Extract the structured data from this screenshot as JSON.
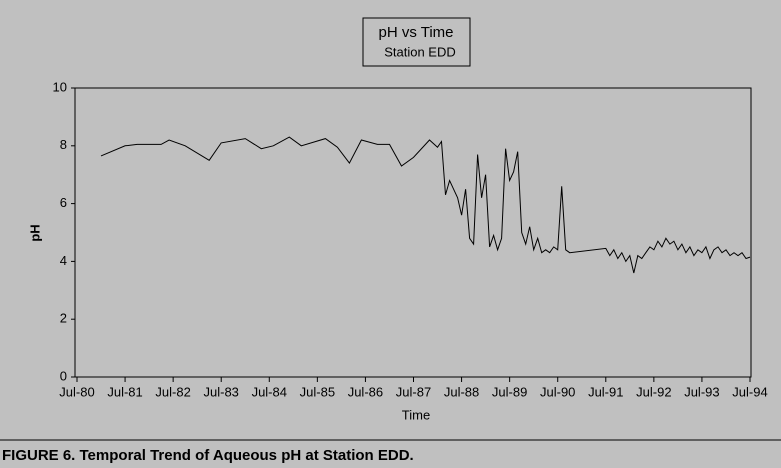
{
  "chart_data": {
    "type": "line",
    "title": "pH vs Time",
    "subtitle": "Station EDD",
    "x_label": "Time",
    "y_label": "pH",
    "caption": "FIGURE 6.  Temporal Trend of Aqueous pH at Station EDD.",
    "xlim": [
      "1980-07",
      "1994-07"
    ],
    "xticks": [
      {
        "value": "1980-07",
        "label": "Jul-80"
      },
      {
        "value": "1981-07",
        "label": "Jul-81"
      },
      {
        "value": "1982-07",
        "label": "Jul-82"
      },
      {
        "value": "1983-07",
        "label": "Jul-83"
      },
      {
        "value": "1984-07",
        "label": "Jul-84"
      },
      {
        "value": "1985-07",
        "label": "Jul-85"
      },
      {
        "value": "1986-07",
        "label": "Jul-86"
      },
      {
        "value": "1987-07",
        "label": "Jul-87"
      },
      {
        "value": "1988-07",
        "label": "Jul-88"
      },
      {
        "value": "1989-07",
        "label": "Jul-89"
      },
      {
        "value": "1990-07",
        "label": "Jul-90"
      },
      {
        "value": "1991-07",
        "label": "Jul-91"
      },
      {
        "value": "1992-07",
        "label": "Jul-92"
      },
      {
        "value": "1993-07",
        "label": "Jul-93"
      },
      {
        "value": "1994-07",
        "label": "Jul-94"
      }
    ],
    "ylim": [
      0,
      10
    ],
    "yticks": [
      0,
      2,
      4,
      6,
      8,
      10
    ],
    "x": [
      "1981-01",
      "1981-07",
      "1981-10",
      "1982-04",
      "1982-06",
      "1982-10",
      "1983-04",
      "1983-07",
      "1984-01",
      "1984-05",
      "1984-08",
      "1984-12",
      "1985-03",
      "1985-09",
      "1985-12",
      "1986-03",
      "1986-06",
      "1986-10",
      "1987-01",
      "1987-04",
      "1987-07",
      "1987-11",
      "1988-01",
      "1988-02",
      "1988-03",
      "1988-04",
      "1988-05",
      "1988-06",
      "1988-07",
      "1988-08",
      "1988-09",
      "1988-10",
      "1988-11",
      "1988-12",
      "1989-01",
      "1989-02",
      "1989-03",
      "1989-04",
      "1989-05",
      "1989-06",
      "1989-07",
      "1989-08",
      "1989-09",
      "1989-10",
      "1989-11",
      "1989-12",
      "1990-01",
      "1990-02",
      "1990-03",
      "1990-04",
      "1990-05",
      "1990-06",
      "1990-07",
      "1990-08",
      "1990-09",
      "1990-10",
      "1991-07",
      "1991-08",
      "1991-09",
      "1991-10",
      "1991-11",
      "1991-12",
      "1992-01",
      "1992-02",
      "1992-03",
      "1992-04",
      "1992-05",
      "1992-06",
      "1992-07",
      "1992-08",
      "1992-09",
      "1992-10",
      "1992-11",
      "1992-12",
      "1993-01",
      "1993-02",
      "1993-03",
      "1993-04",
      "1993-05",
      "1993-06",
      "1993-07",
      "1993-08",
      "1993-09",
      "1993-10",
      "1993-11",
      "1993-12",
      "1994-01",
      "1994-02",
      "1994-03",
      "1994-04",
      "1994-05",
      "1994-06",
      "1994-07"
    ],
    "series": [
      {
        "name": "pH",
        "color": "#000000",
        "values": [
          7.65,
          8.0,
          8.05,
          8.05,
          8.2,
          8.0,
          7.5,
          8.1,
          8.25,
          7.9,
          8.0,
          8.3,
          8.0,
          8.25,
          7.95,
          7.4,
          8.2,
          8.05,
          8.05,
          7.3,
          7.6,
          8.2,
          7.95,
          8.15,
          6.3,
          6.8,
          6.5,
          6.2,
          5.6,
          6.5,
          4.8,
          4.6,
          7.7,
          6.2,
          7.0,
          4.5,
          4.9,
          4.4,
          4.8,
          7.9,
          6.8,
          7.1,
          7.8,
          5.0,
          4.6,
          5.2,
          4.4,
          4.8,
          4.3,
          4.4,
          4.3,
          4.5,
          4.4,
          6.6,
          4.4,
          4.3,
          4.45,
          4.2,
          4.4,
          4.1,
          4.3,
          4.0,
          4.2,
          3.6,
          4.2,
          4.1,
          4.3,
          4.5,
          4.4,
          4.7,
          4.5,
          4.8,
          4.6,
          4.7,
          4.4,
          4.6,
          4.3,
          4.5,
          4.2,
          4.4,
          4.3,
          4.5,
          4.1,
          4.4,
          4.5,
          4.3,
          4.4,
          4.2,
          4.3,
          4.2,
          4.3,
          4.1,
          4.15
        ]
      }
    ]
  }
}
